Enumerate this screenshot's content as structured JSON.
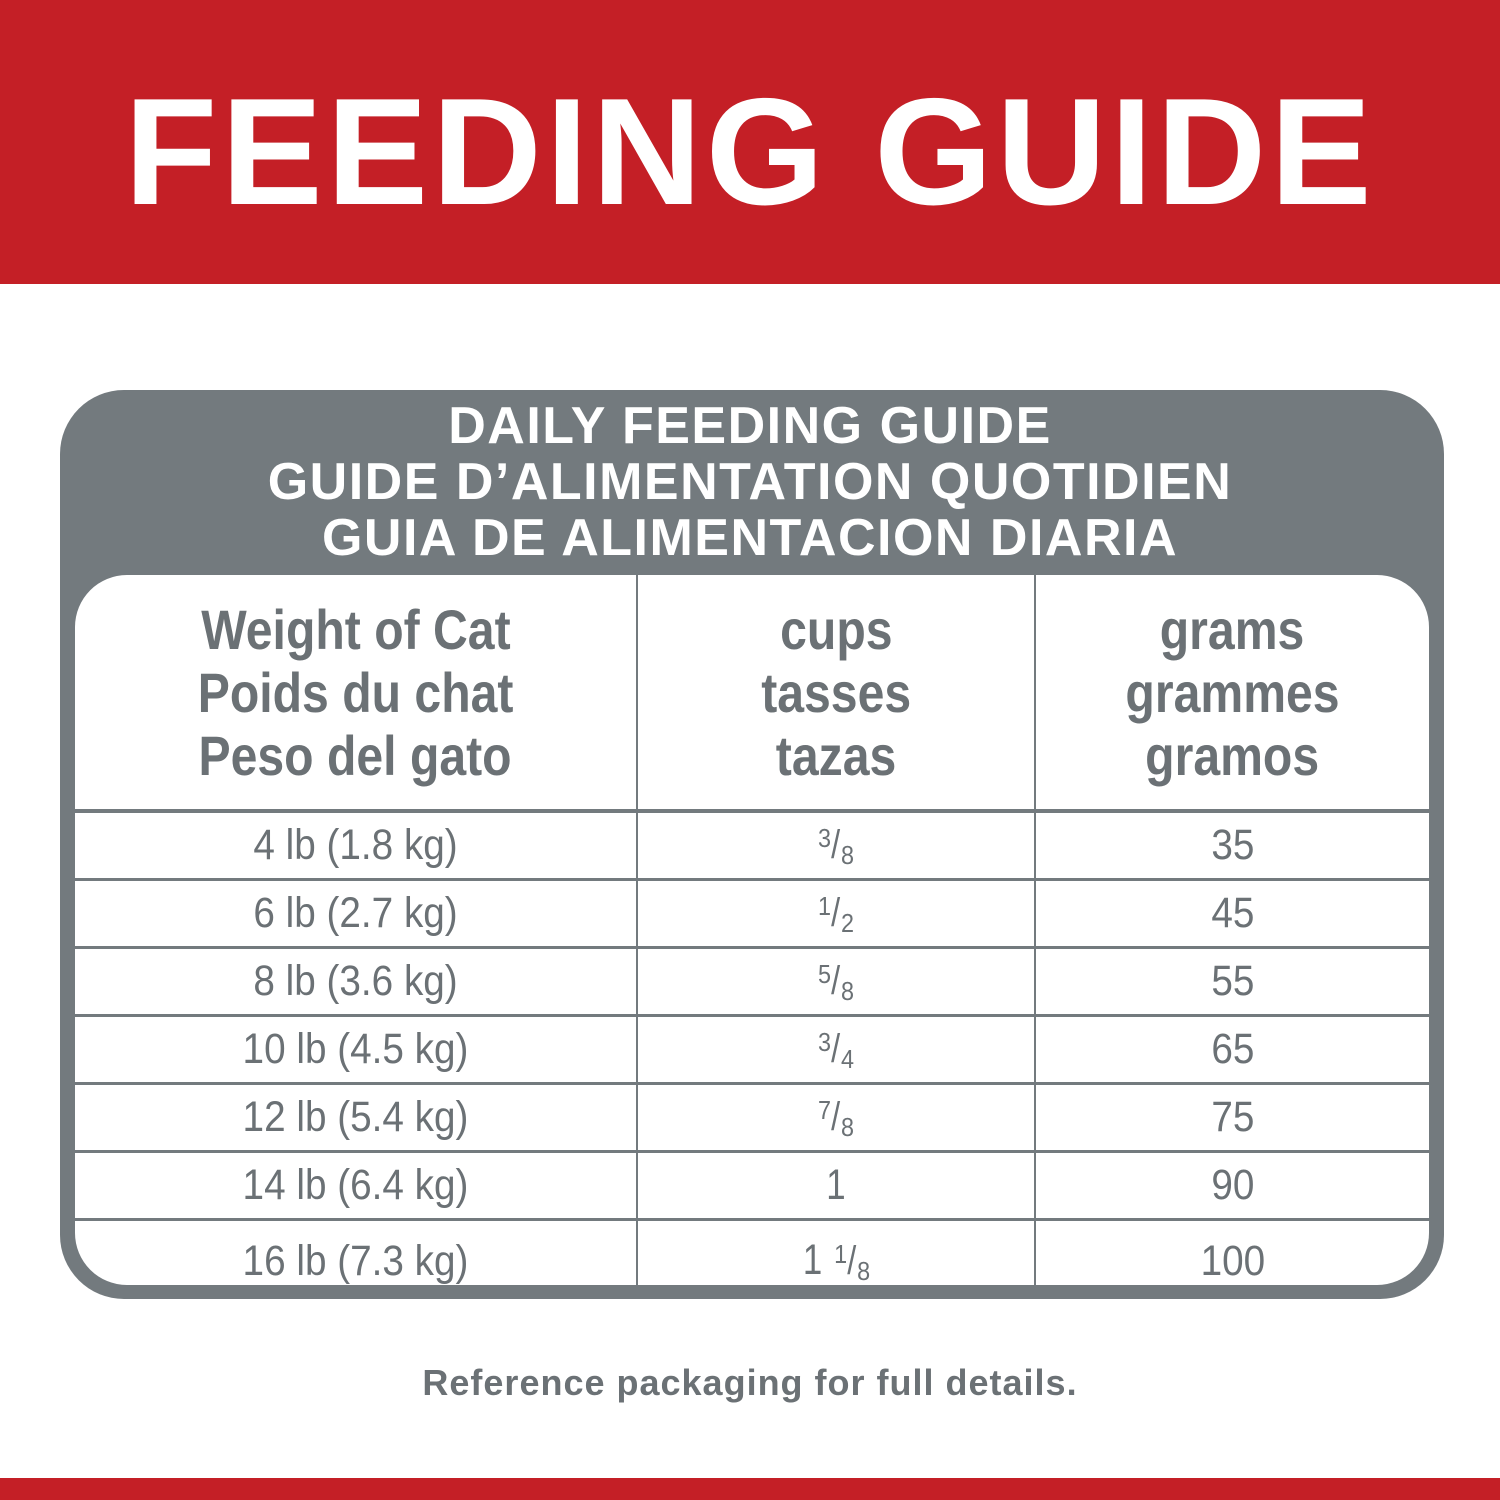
{
  "banner": {
    "title": "FEEDING GUIDE"
  },
  "card": {
    "titles": [
      "DAILY FEEDING GUIDE",
      "GUIDE D’ALIMENTATION QUOTIDIEN",
      "GUIA DE ALIMENTACION DIARIA"
    ]
  },
  "table": {
    "headers": [
      [
        "Weight of Cat",
        "Poids du chat",
        "Peso del gato"
      ],
      [
        "cups",
        "tasses",
        "tazas"
      ],
      [
        "grams",
        "grammes",
        "gramos"
      ]
    ],
    "rows": [
      {
        "weight": "4 lb (1.8 kg)",
        "cups": {
          "whole": "",
          "num": "3",
          "den": "8"
        },
        "grams": "35"
      },
      {
        "weight": "6 lb (2.7 kg)",
        "cups": {
          "whole": "",
          "num": "1",
          "den": "2"
        },
        "grams": "45"
      },
      {
        "weight": "8 lb (3.6 kg)",
        "cups": {
          "whole": "",
          "num": "5",
          "den": "8"
        },
        "grams": "55"
      },
      {
        "weight": "10 lb (4.5 kg)",
        "cups": {
          "whole": "",
          "num": "3",
          "den": "4"
        },
        "grams": "65"
      },
      {
        "weight": "12 lb (5.4 kg)",
        "cups": {
          "whole": "",
          "num": "7",
          "den": "8"
        },
        "grams": "75"
      },
      {
        "weight": "14 lb (6.4 kg)",
        "cups": {
          "whole": "1",
          "num": "",
          "den": ""
        },
        "grams": "90"
      },
      {
        "weight": "16 lb (7.3 kg)",
        "cups": {
          "whole": "1",
          "num": "1",
          "den": "8"
        },
        "grams": "100"
      }
    ]
  },
  "footer": {
    "note": "Reference packaging for full details."
  },
  "colors": {
    "brand_red": "#c41f26",
    "table_gray": "#737a7e",
    "text_gray": "#6b7175"
  }
}
